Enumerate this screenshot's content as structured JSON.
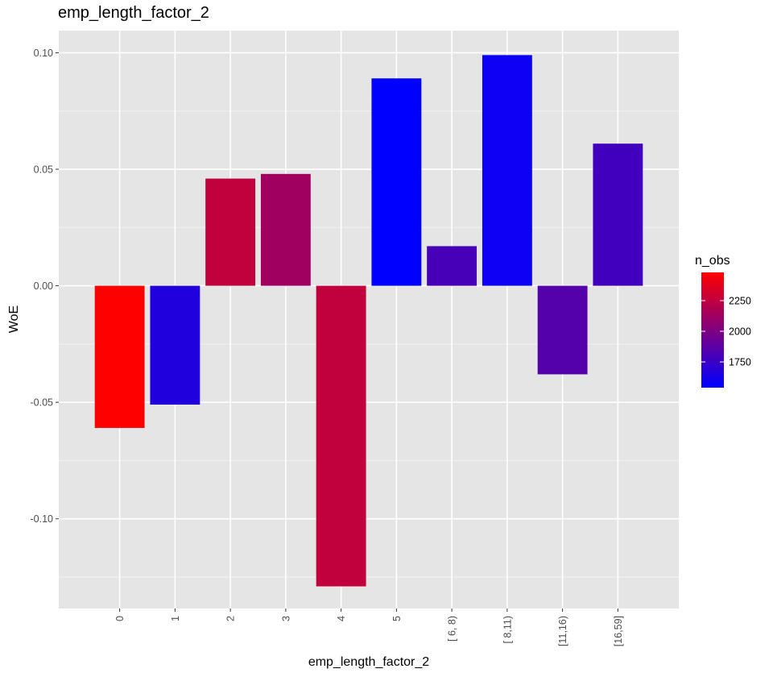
{
  "chart_data": {
    "type": "bar",
    "title": "emp_length_factor_2",
    "xlabel": "emp_length_factor_2",
    "ylabel": "WoE",
    "categories": [
      "0",
      "1",
      "2",
      "3",
      "4",
      "5",
      "[ 6, 8)",
      "[ 8,11)",
      "[11,16)",
      "[16,59]"
    ],
    "values": [
      -0.061,
      -0.051,
      0.046,
      0.048,
      -0.129,
      0.089,
      0.017,
      0.099,
      -0.038,
      0.061
    ],
    "n_obs": [
      2480,
      1660,
      2250,
      2130,
      2250,
      1540,
      1800,
      1580,
      1850,
      1780
    ],
    "ylim": [
      -0.1385,
      0.1095
    ],
    "y_ticks": [
      0.1,
      0.05,
      0.0,
      -0.05,
      -0.1
    ],
    "y_tick_labels": [
      "0.10",
      "0.05",
      "0.00",
      "-0.05",
      "-0.10"
    ],
    "grid": true,
    "legend": {
      "title": "n_obs",
      "placement": "right",
      "range": [
        1540,
        2480
      ],
      "ticks": [
        1750,
        2000,
        2250
      ],
      "tick_labels": [
        "1750",
        "2000",
        "2250"
      ],
      "low_color": "#0000ff",
      "high_color": "#ff0000"
    },
    "colors": {
      "panel_background": "#e5e5e5",
      "grid_major": "#ffffff",
      "grid_minor": "#f2f2f2"
    }
  }
}
